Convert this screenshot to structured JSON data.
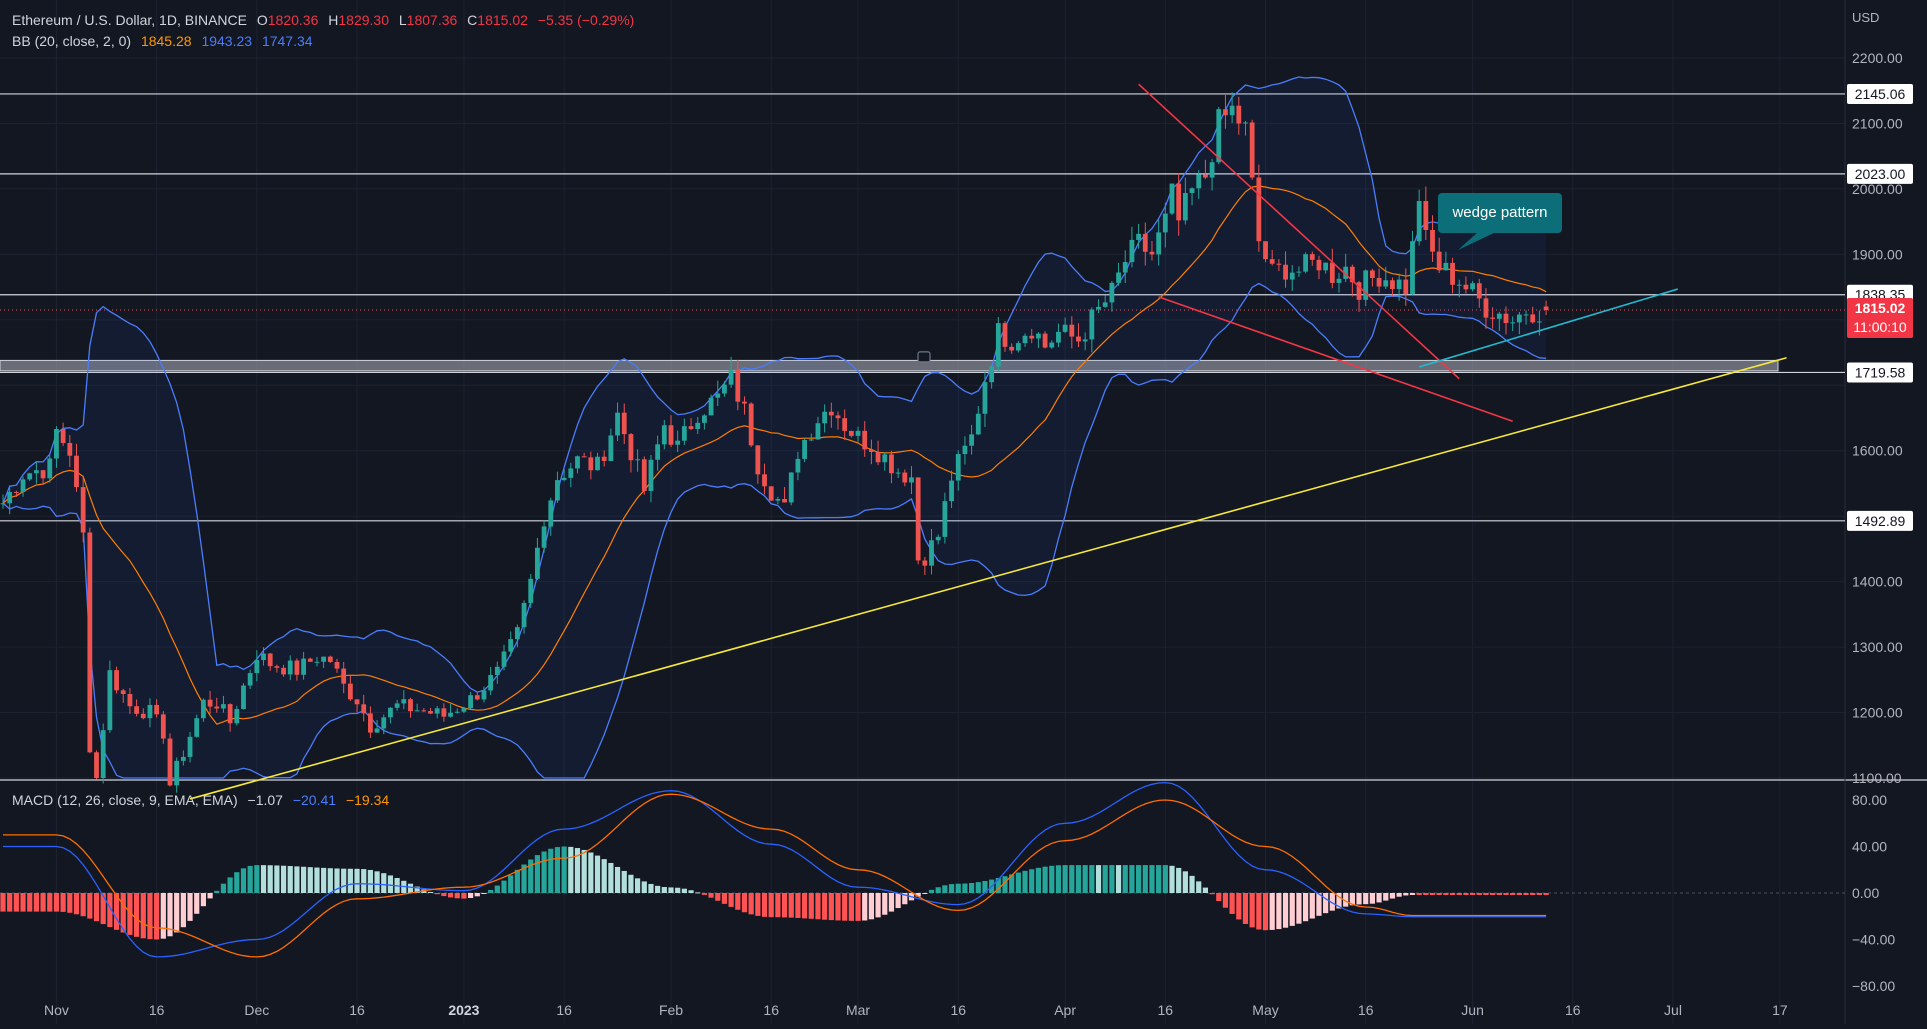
{
  "header": {
    "symbol": "Ethereum / U.S. Dollar, 1D, BINANCE",
    "o_label": "O",
    "o_value": "1820.36",
    "h_label": "H",
    "h_value": "1829.30",
    "l_label": "L",
    "l_value": "1807.36",
    "c_label": "C",
    "c_value": "1815.02",
    "change": "−5.35 (−0.29%)",
    "bb_label": "BB (20, close, 2, 0)",
    "bb_basis": "1845.28",
    "bb_upper": "1943.23",
    "bb_lower": "1747.34",
    "macd_label": "MACD (12, 26, close, 9, EMA, EMA)",
    "macd_hist": "−1.07",
    "macd_line": "−20.41",
    "macd_signal": "−19.34"
  },
  "axis": {
    "currency": "USD",
    "price_ticks": [
      "2200.00",
      "2100.00",
      "2000.00",
      "1900.00",
      "1600.00",
      "1400.00",
      "1300.00",
      "1200.00",
      "1100.00"
    ],
    "macd_ticks": [
      "80.00",
      "40.00",
      "0.00",
      "−40.00",
      "−80.00"
    ],
    "x_ticks": [
      "Nov",
      "16",
      "Dec",
      "16",
      "2023",
      "16",
      "Feb",
      "16",
      "Mar",
      "16",
      "Apr",
      "16",
      "May",
      "16",
      "Jun",
      "16",
      "Jul",
      "17"
    ]
  },
  "levels": [
    {
      "label": "2145.06",
      "value": 2145.06
    },
    {
      "label": "2023.00",
      "value": 2023.0
    },
    {
      "label": "1838.35",
      "value": 1838.35
    },
    {
      "label": "1719.58",
      "value": 1719.58
    },
    {
      "label": "1492.89",
      "value": 1492.89
    }
  ],
  "current_price": {
    "label": "1815.02",
    "countdown": "11:00:10",
    "value": 1815.02
  },
  "annotation": {
    "text": "wedge pattern"
  },
  "colors": {
    "background": "#131722",
    "up": "#26a69a",
    "down": "#ef5350",
    "bb_band": "#4a7dfc",
    "bb_basis": "#ff7f00",
    "trendline": "#f5e83a",
    "wedge": "#f23645",
    "support_line": "#22b8cf",
    "macd_line": "#2962ff",
    "signal_line": "#ff6d00",
    "hist_up": "#26a69a",
    "hist_up_weak": "#b2dfdb",
    "hist_down": "#ff5252",
    "hist_down_weak": "#ffcdd2",
    "label_bg": "#0b6e78"
  },
  "chart_data": {
    "type": "line",
    "title": "Ethereum / U.S. Dollar, 1D, BINANCE",
    "ylim": [
      1050,
      2250
    ],
    "x": [
      "Nov 1",
      "Nov 16",
      "Dec 1",
      "Dec 16",
      "Jan 1",
      "Jan 16",
      "Feb 1",
      "Feb 16",
      "Mar 1",
      "Mar 16",
      "Apr 1",
      "Apr 16",
      "May 1",
      "May 16",
      "May 23"
    ],
    "series": [
      {
        "name": "Close",
        "values": [
          1580,
          1215,
          1295,
          1165,
          1200,
          1555,
          1640,
          1690,
          1610,
          1660,
          1820,
          2100,
          1860,
          1820,
          1815
        ]
      },
      {
        "name": "BB (20, close, 2, 0)",
        "values": [
          1760,
          1300,
          1270,
          1230,
          1210,
          1420,
          1610,
          1640,
          1630,
          1620,
          1760,
          1890,
          1970,
          1860,
          1845
        ]
      }
    ],
    "macd_ylim": [
      -90,
      100
    ],
    "macd": {
      "x": [
        "Nov 1",
        "Nov 16",
        "Dec 1",
        "Dec 16",
        "Jan 1",
        "Jan 16",
        "Feb 1",
        "Feb 16",
        "Mar 1",
        "Mar 16",
        "Apr 1",
        "Apr 16",
        "May 1",
        "May 16",
        "May 23"
      ],
      "macd": [
        40,
        -55,
        -40,
        8,
        2,
        55,
        88,
        42,
        5,
        -10,
        60,
        95,
        20,
        -18,
        -20.41
      ],
      "signal": [
        50,
        -30,
        -55,
        -5,
        5,
        30,
        85,
        55,
        20,
        -15,
        45,
        80,
        40,
        -12,
        -19.34
      ]
    },
    "levels": [
      2145.06,
      2023.0,
      1838.35,
      1719.58,
      1492.89
    ],
    "trendlines": [
      {
        "name": "Rising support",
        "from": [
          "Nov 21",
          1068
        ],
        "to": [
          "Jul 18",
          1742
        ]
      },
      {
        "name": "Wedge upper",
        "from": [
          "Apr 12",
          2160
        ],
        "to": [
          "May 30",
          1710
        ]
      },
      {
        "name": "Wedge lower",
        "from": [
          "Apr 15",
          1835
        ],
        "to": [
          "Jun 7",
          1645
        ]
      }
    ]
  }
}
